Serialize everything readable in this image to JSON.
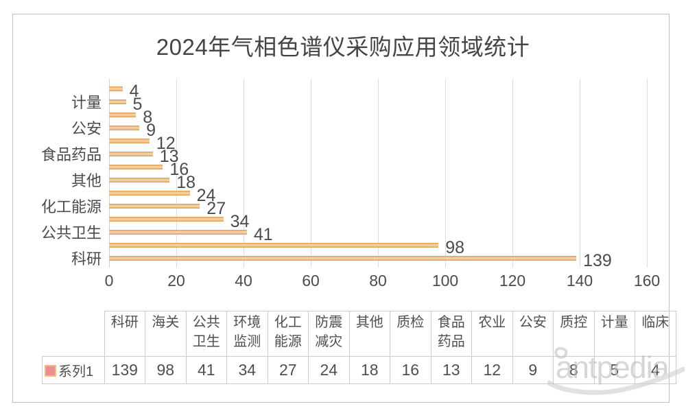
{
  "title": "2024年气相色谱仪采购应用领域统计",
  "watermark": {
    "text": "antpedia"
  },
  "chart_data": {
    "type": "bar",
    "orientation": "horizontal",
    "title": "2024年气相色谱仪采购应用领域统计",
    "xlabel": "",
    "ylabel": "",
    "xlim": [
      0,
      160
    ],
    "x_ticks": [
      0,
      20,
      40,
      60,
      80,
      100,
      120,
      140,
      160
    ],
    "grid": "vertical-on",
    "legend_position": "table-left",
    "series_name": "系列1",
    "bars_top_to_bottom": [
      {
        "category": "临床",
        "value": 4,
        "axis_label_shown": false
      },
      {
        "category": "计量",
        "value": 5,
        "axis_label_shown": true
      },
      {
        "category": "质控",
        "value": 8,
        "axis_label_shown": false
      },
      {
        "category": "公安",
        "value": 9,
        "axis_label_shown": true
      },
      {
        "category": "农业",
        "value": 12,
        "axis_label_shown": false
      },
      {
        "category": "食品药品",
        "value": 13,
        "axis_label_shown": true
      },
      {
        "category": "质检",
        "value": 16,
        "axis_label_shown": false
      },
      {
        "category": "其他",
        "value": 18,
        "axis_label_shown": true
      },
      {
        "category": "防震减灾",
        "value": 24,
        "axis_label_shown": false
      },
      {
        "category": "化工能源",
        "value": 27,
        "axis_label_shown": true
      },
      {
        "category": "环境监测",
        "value": 34,
        "axis_label_shown": false
      },
      {
        "category": "公共卫生",
        "value": 41,
        "axis_label_shown": true
      },
      {
        "category": "海关",
        "value": 98,
        "axis_label_shown": false
      },
      {
        "category": "科研",
        "value": 139,
        "axis_label_shown": true
      }
    ],
    "colors": {
      "bar_edge": "#dd9b58",
      "bar_center": "#f6dab0",
      "gridline": "#dcdcdc",
      "legend_marker_fill": "#e89090",
      "legend_marker_border": "#f0bb84",
      "text": "#4a4a4a"
    }
  },
  "table": {
    "series_label": "系列1",
    "columns": [
      "科研",
      "海关",
      "公共卫生",
      "环境监测",
      "化工能源",
      "防震减灾",
      "其他",
      "质检",
      "食品药品",
      "农业",
      "公安",
      "质控",
      "计量",
      "临床"
    ],
    "values": [
      139,
      98,
      41,
      34,
      27,
      24,
      18,
      16,
      13,
      12,
      9,
      8,
      5,
      4
    ]
  }
}
